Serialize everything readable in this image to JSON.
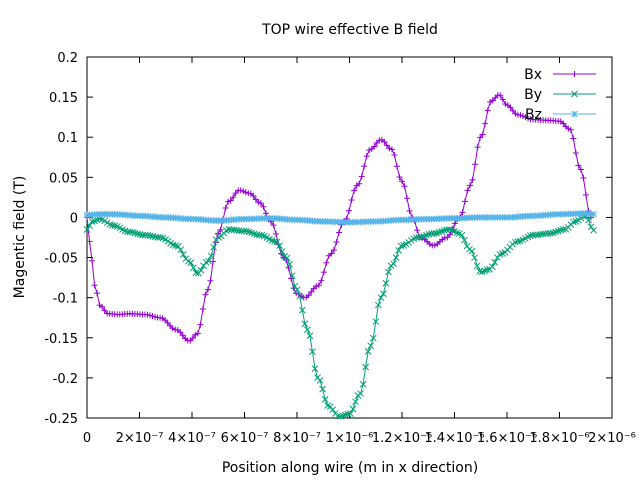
{
  "chart_data": {
    "type": "line",
    "title": "TOP wire effective B field",
    "xlabel": "Position along wire (m in x direction)",
    "ylabel": "Magentic field (T)",
    "xlim": [
      0,
      2e-06
    ],
    "ylim": [
      -0.25,
      0.2
    ],
    "x_ticks": [
      0,
      2e-07,
      4e-07,
      6e-07,
      8e-07,
      1e-06,
      1.2e-06,
      1.4e-06,
      1.6e-06,
      1.8e-06,
      2e-06
    ],
    "x_tick_labels": [
      "0",
      "2×10⁻⁷",
      "4×10⁻⁷",
      "6×10⁻⁷",
      "8×10⁻⁷",
      "1×10⁻⁶",
      "1.2×10⁻⁶",
      "1.4×10⁻⁶",
      "1.6×10⁻⁶",
      "1.8×10⁻⁶",
      "2×10⁻⁶"
    ],
    "y_ticks": [
      -0.25,
      -0.2,
      -0.15,
      -0.1,
      -0.05,
      0,
      0.05,
      0.1,
      0.15,
      0.2
    ],
    "y_tick_labels": [
      "-0.25",
      "-0.2",
      "-0.15",
      "-0.1",
      "-0.05",
      "0",
      "0.05",
      "0.1",
      "0.15",
      "0.2"
    ],
    "grid": false,
    "legend_position": "top-right",
    "series": [
      {
        "name": "Bx",
        "color": "#9400d3",
        "marker": "plus",
        "points": [
          [
            0,
            0.0
          ],
          [
            1e-08,
            -0.03
          ],
          [
            3e-08,
            -0.085
          ],
          [
            5e-08,
            -0.11
          ],
          [
            8e-08,
            -0.12
          ],
          [
            1.2e-07,
            -0.121
          ],
          [
            1.6e-07,
            -0.12
          ],
          [
            2.2e-07,
            -0.121
          ],
          [
            2.8e-07,
            -0.125
          ],
          [
            3.4e-07,
            -0.14
          ],
          [
            3.9e-07,
            -0.154
          ],
          [
            4.2e-07,
            -0.145
          ],
          [
            4.6e-07,
            -0.09
          ],
          [
            5e-07,
            -0.02
          ],
          [
            5.4e-07,
            0.02
          ],
          [
            5.8e-07,
            0.034
          ],
          [
            6.2e-07,
            0.03
          ],
          [
            6.6e-07,
            0.018
          ],
          [
            7e-07,
            -0.005
          ],
          [
            7.5e-07,
            -0.05
          ],
          [
            8e-07,
            -0.095
          ],
          [
            8.3e-07,
            -0.1
          ],
          [
            8.8e-07,
            -0.085
          ],
          [
            9.3e-07,
            -0.045
          ],
          [
            9.8e-07,
            -0.005
          ],
          [
            1.03e-06,
            0.04
          ],
          [
            1.08e-06,
            0.085
          ],
          [
            1.12e-06,
            0.097
          ],
          [
            1.16e-06,
            0.085
          ],
          [
            1.2e-06,
            0.045
          ],
          [
            1.24e-06,
            0.0
          ],
          [
            1.27e-06,
            -0.025
          ],
          [
            1.32e-06,
            -0.035
          ],
          [
            1.37e-06,
            -0.025
          ],
          [
            1.42e-06,
            0.0
          ],
          [
            1.46e-06,
            0.04
          ],
          [
            1.5e-06,
            0.1
          ],
          [
            1.54e-06,
            0.145
          ],
          [
            1.57e-06,
            0.153
          ],
          [
            1.6e-06,
            0.14
          ],
          [
            1.64e-06,
            0.128
          ],
          [
            1.7e-06,
            0.122
          ],
          [
            1.76e-06,
            0.121
          ],
          [
            1.8e-06,
            0.12
          ],
          [
            1.84e-06,
            0.11
          ],
          [
            1.88e-06,
            0.06
          ],
          [
            1.92e-06,
            0.0
          ]
        ]
      },
      {
        "name": "By",
        "color": "#009e73",
        "marker": "cross",
        "points": [
          [
            0,
            -0.015
          ],
          [
            2e-08,
            -0.005
          ],
          [
            5e-08,
            -0.002
          ],
          [
            1e-07,
            -0.01
          ],
          [
            1.6e-07,
            -0.018
          ],
          [
            2.2e-07,
            -0.022
          ],
          [
            2.8e-07,
            -0.025
          ],
          [
            3.4e-07,
            -0.035
          ],
          [
            3.9e-07,
            -0.055
          ],
          [
            4.2e-07,
            -0.07
          ],
          [
            4.6e-07,
            -0.055
          ],
          [
            5e-07,
            -0.025
          ],
          [
            5.4e-07,
            -0.015
          ],
          [
            6e-07,
            -0.017
          ],
          [
            6.6e-07,
            -0.022
          ],
          [
            7.2e-07,
            -0.03
          ],
          [
            7.6e-07,
            -0.05
          ],
          [
            8e-07,
            -0.09
          ],
          [
            8.4e-07,
            -0.14
          ],
          [
            8.8e-07,
            -0.2
          ],
          [
            9.2e-07,
            -0.235
          ],
          [
            9.6e-07,
            -0.248
          ],
          [
            1e-06,
            -0.245
          ],
          [
            1.04e-06,
            -0.22
          ],
          [
            1.08e-06,
            -0.16
          ],
          [
            1.12e-06,
            -0.1
          ],
          [
            1.16e-06,
            -0.06
          ],
          [
            1.2e-06,
            -0.035
          ],
          [
            1.26e-06,
            -0.025
          ],
          [
            1.32e-06,
            -0.02
          ],
          [
            1.38e-06,
            -0.015
          ],
          [
            1.42e-06,
            -0.02
          ],
          [
            1.46e-06,
            -0.04
          ],
          [
            1.5e-06,
            -0.068
          ],
          [
            1.53e-06,
            -0.065
          ],
          [
            1.58e-06,
            -0.045
          ],
          [
            1.64e-06,
            -0.03
          ],
          [
            1.7e-06,
            -0.022
          ],
          [
            1.76e-06,
            -0.02
          ],
          [
            1.82e-06,
            -0.015
          ],
          [
            1.86e-06,
            -0.005
          ],
          [
            1.9e-06,
            0.002
          ],
          [
            1.93e-06,
            -0.016
          ]
        ]
      },
      {
        "name": "Bz",
        "color": "#56b4e9",
        "marker": "star",
        "points": [
          [
            0,
            0.003
          ],
          [
            5e-08,
            0.004
          ],
          [
            1e-07,
            0.004
          ],
          [
            2e-07,
            0.002
          ],
          [
            3e-07,
            0.0
          ],
          [
            4e-07,
            -0.002
          ],
          [
            5e-07,
            -0.004
          ],
          [
            6e-07,
            -0.002
          ],
          [
            7e-07,
            -0.001
          ],
          [
            8e-07,
            -0.003
          ],
          [
            9e-07,
            -0.005
          ],
          [
            1e-06,
            -0.006
          ],
          [
            1.1e-06,
            -0.005
          ],
          [
            1.2e-06,
            -0.003
          ],
          [
            1.3e-06,
            -0.002
          ],
          [
            1.4e-06,
            -0.001
          ],
          [
            1.5e-06,
            0.0
          ],
          [
            1.6e-06,
            0.0
          ],
          [
            1.7e-06,
            0.002
          ],
          [
            1.8e-06,
            0.004
          ],
          [
            1.9e-06,
            0.005
          ],
          [
            1.93e-06,
            0.004
          ]
        ]
      }
    ]
  }
}
